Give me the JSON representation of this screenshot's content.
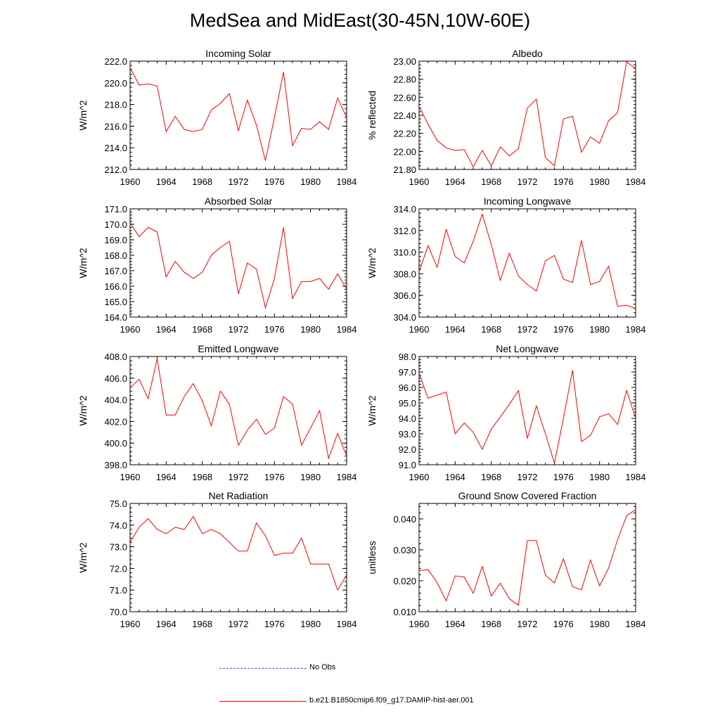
{
  "title": "MedSea and MidEast(30-45N,10W-60E)",
  "colors": {
    "model": "#ff0000",
    "obs": "#4a4ad8",
    "axis": "#000000"
  },
  "legend": {
    "obs_label": "No Obs",
    "model_label": "b.e21.B1850cmip6.f09_g17.DAMIP-hist-aer.001"
  },
  "chart_data": [
    {
      "type": "line",
      "title": "Incoming Solar",
      "ylabel": "W/m^2",
      "xlim": [
        1960,
        1984
      ],
      "ylim": [
        212,
        222
      ],
      "x_ticks": [
        "1960",
        "1964",
        "1968",
        "1972",
        "1976",
        "1980",
        "1984"
      ],
      "y_ticks": [
        "212.0",
        "214.0",
        "216.0",
        "218.0",
        "220.0",
        "222.0"
      ],
      "x": [
        1960,
        1961,
        1962,
        1963,
        1964,
        1965,
        1966,
        1967,
        1968,
        1969,
        1970,
        1971,
        1972,
        1973,
        1974,
        1975,
        1976,
        1977,
        1978,
        1979,
        1980,
        1981,
        1982,
        1983,
        1984
      ],
      "series": [
        {
          "name": "b.e21.B1850cmip6.f09_g17.DAMIP-hist-aer.001",
          "values": [
            221.4,
            219.8,
            219.9,
            219.7,
            215.5,
            216.9,
            215.7,
            215.5,
            215.7,
            217.5,
            218.1,
            219.0,
            215.6,
            218.4,
            216.1,
            212.8,
            216.8,
            221.0,
            214.2,
            215.8,
            215.7,
            216.4,
            215.7,
            218.6,
            216.8
          ]
        }
      ]
    },
    {
      "type": "line",
      "title": "Albedo",
      "ylabel": "% reflected",
      "xlim": [
        1960,
        1984
      ],
      "ylim": [
        21.8,
        23.0
      ],
      "x_ticks": [
        "1960",
        "1964",
        "1968",
        "1972",
        "1976",
        "1980",
        "1984"
      ],
      "y_ticks": [
        "21.80",
        "22.00",
        "22.20",
        "22.40",
        "22.60",
        "22.80",
        "23.00"
      ],
      "x": [
        1960,
        1961,
        1962,
        1963,
        1964,
        1965,
        1966,
        1967,
        1968,
        1969,
        1970,
        1971,
        1972,
        1973,
        1974,
        1975,
        1976,
        1977,
        1978,
        1979,
        1980,
        1981,
        1982,
        1983,
        1984
      ],
      "series": [
        {
          "name": "b.e21.B1850cmip6.f09_g17.DAMIP-hist-aer.001",
          "values": [
            22.5,
            22.3,
            22.12,
            22.04,
            22.01,
            22.02,
            21.83,
            22.01,
            21.84,
            22.05,
            21.95,
            22.03,
            22.48,
            22.58,
            21.93,
            21.84,
            22.36,
            22.39,
            21.99,
            22.16,
            22.09,
            22.34,
            22.43,
            22.99,
            22.92
          ]
        }
      ]
    },
    {
      "type": "line",
      "title": "Absorbed Solar",
      "ylabel": "W/m^2",
      "xlim": [
        1960,
        1984
      ],
      "ylim": [
        164,
        171
      ],
      "x_ticks": [
        "1960",
        "1964",
        "1968",
        "1972",
        "1976",
        "1980",
        "1984"
      ],
      "y_ticks": [
        "164.0",
        "165.0",
        "166.0",
        "167.0",
        "168.0",
        "169.0",
        "170.0",
        "171.0"
      ],
      "x": [
        1960,
        1961,
        1962,
        1963,
        1964,
        1965,
        1966,
        1967,
        1968,
        1969,
        1970,
        1971,
        1972,
        1973,
        1974,
        1975,
        1976,
        1977,
        1978,
        1979,
        1980,
        1981,
        1982,
        1983,
        1984
      ],
      "series": [
        {
          "name": "b.e21.B1850cmip6.f09_g17.DAMIP-hist-aer.001",
          "values": [
            170.1,
            169.2,
            169.8,
            169.5,
            166.6,
            167.6,
            166.9,
            166.5,
            166.9,
            168.0,
            168.5,
            168.9,
            165.5,
            167.5,
            167.1,
            164.6,
            166.5,
            169.8,
            165.2,
            166.3,
            166.3,
            166.5,
            165.8,
            166.8,
            165.8
          ]
        }
      ]
    },
    {
      "type": "line",
      "title": "Incoming Longwave",
      "ylabel": "W/m^2",
      "xlim": [
        1960,
        1984
      ],
      "ylim": [
        304,
        314
      ],
      "x_ticks": [
        "1960",
        "1964",
        "1968",
        "1972",
        "1976",
        "1980",
        "1984"
      ],
      "y_ticks": [
        "304.0",
        "306.0",
        "308.0",
        "310.0",
        "312.0",
        "314.0"
      ],
      "x": [
        1960,
        1961,
        1962,
        1963,
        1964,
        1965,
        1966,
        1967,
        1968,
        1969,
        1970,
        1971,
        1972,
        1973,
        1974,
        1975,
        1976,
        1977,
        1978,
        1979,
        1980,
        1981,
        1982,
        1983,
        1984
      ],
      "series": [
        {
          "name": "b.e21.B1850cmip6.f09_g17.DAMIP-hist-aer.001",
          "values": [
            308.2,
            310.6,
            308.6,
            312.1,
            309.6,
            309.0,
            311.0,
            313.5,
            310.7,
            307.4,
            309.9,
            307.8,
            307.0,
            306.4,
            309.2,
            309.7,
            307.5,
            307.2,
            311.1,
            307.0,
            307.3,
            308.7,
            305.0,
            305.1,
            304.8
          ]
        }
      ]
    },
    {
      "type": "line",
      "title": "Emitted Longwave",
      "ylabel": "W/m^2",
      "xlim": [
        1960,
        1984
      ],
      "ylim": [
        398,
        408
      ],
      "x_ticks": [
        "1960",
        "1964",
        "1968",
        "1972",
        "1976",
        "1980",
        "1984"
      ],
      "y_ticks": [
        "398.0",
        "400.0",
        "402.0",
        "404.0",
        "406.0",
        "408.0"
      ],
      "x": [
        1960,
        1961,
        1962,
        1963,
        1964,
        1965,
        1966,
        1967,
        1968,
        1969,
        1970,
        1971,
        1972,
        1973,
        1974,
        1975,
        1976,
        1977,
        1978,
        1979,
        1980,
        1981,
        1982,
        1983,
        1984
      ],
      "series": [
        {
          "name": "b.e21.B1850cmip6.f09_g17.DAMIP-hist-aer.001",
          "values": [
            405.1,
            405.9,
            404.1,
            407.8,
            402.6,
            402.6,
            404.3,
            405.5,
            403.9,
            401.6,
            404.8,
            403.6,
            399.8,
            401.2,
            402.2,
            400.8,
            401.4,
            404.3,
            403.6,
            399.8,
            401.4,
            403.0,
            398.6,
            400.9,
            398.8
          ]
        }
      ]
    },
    {
      "type": "line",
      "title": "Net Longwave",
      "ylabel": "W/m^2",
      "xlim": [
        1960,
        1984
      ],
      "ylim": [
        91,
        98
      ],
      "x_ticks": [
        "1960",
        "1964",
        "1968",
        "1972",
        "1976",
        "1980",
        "1984"
      ],
      "y_ticks": [
        "91.0",
        "92.0",
        "93.0",
        "94.0",
        "95.0",
        "96.0",
        "97.0",
        "98.0"
      ],
      "x": [
        1960,
        1961,
        1962,
        1963,
        1964,
        1965,
        1966,
        1967,
        1968,
        1969,
        1970,
        1971,
        1972,
        1973,
        1974,
        1975,
        1976,
        1977,
        1978,
        1979,
        1980,
        1981,
        1982,
        1983,
        1984
      ],
      "series": [
        {
          "name": "b.e21.B1850cmip6.f09_g17.DAMIP-hist-aer.001",
          "values": [
            96.9,
            95.3,
            95.5,
            95.7,
            93.0,
            93.7,
            93.1,
            92.0,
            93.3,
            94.1,
            94.9,
            95.8,
            92.7,
            94.8,
            93.0,
            91.1,
            94.0,
            97.1,
            92.5,
            92.9,
            94.1,
            94.3,
            93.6,
            95.8,
            94.0
          ]
        }
      ]
    },
    {
      "type": "line",
      "title": "Net Radiation",
      "ylabel": "W/m^2",
      "xlim": [
        1960,
        1984
      ],
      "ylim": [
        70,
        75
      ],
      "x_ticks": [
        "1960",
        "1964",
        "1968",
        "1972",
        "1976",
        "1980",
        "1984"
      ],
      "y_ticks": [
        "70.0",
        "71.0",
        "72.0",
        "73.0",
        "74.0",
        "75.0"
      ],
      "x": [
        1960,
        1961,
        1962,
        1963,
        1964,
        1965,
        1966,
        1967,
        1968,
        1969,
        1970,
        1971,
        1972,
        1973,
        1974,
        1975,
        1976,
        1977,
        1978,
        1979,
        1980,
        1981,
        1982,
        1983,
        1984
      ],
      "series": [
        {
          "name": "b.e21.B1850cmip6.f09_g17.DAMIP-hist-aer.001",
          "values": [
            73.2,
            73.9,
            74.3,
            73.8,
            73.6,
            73.9,
            73.8,
            74.4,
            73.6,
            73.8,
            73.6,
            73.2,
            72.8,
            72.8,
            74.1,
            73.5,
            72.6,
            72.7,
            72.7,
            73.4,
            72.2,
            72.2,
            72.2,
            71.0,
            71.7
          ]
        }
      ]
    },
    {
      "type": "line",
      "title": "Ground Snow Covered Fraction",
      "ylabel": "unitless",
      "xlim": [
        1960,
        1984
      ],
      "ylim": [
        0.01,
        0.045
      ],
      "x_ticks": [
        "1960",
        "1964",
        "1968",
        "1972",
        "1976",
        "1980",
        "1984"
      ],
      "y_ticks": [
        "0.010",
        "0.020",
        "0.030",
        "0.040"
      ],
      "y_tick_values": [
        0.01,
        0.02,
        0.03,
        0.04
      ],
      "x": [
        1960,
        1961,
        1962,
        1963,
        1964,
        1965,
        1966,
        1967,
        1968,
        1969,
        1970,
        1971,
        1972,
        1973,
        1974,
        1975,
        1976,
        1977,
        1978,
        1979,
        1980,
        1981,
        1982,
        1983,
        1984
      ],
      "series": [
        {
          "name": "b.e21.B1850cmip6.f09_g17.DAMIP-hist-aer.001",
          "values": [
            0.0233,
            0.0236,
            0.0194,
            0.0135,
            0.0216,
            0.0212,
            0.016,
            0.0246,
            0.0151,
            0.0192,
            0.0142,
            0.0121,
            0.033,
            0.033,
            0.0218,
            0.0193,
            0.0271,
            0.0181,
            0.0171,
            0.0267,
            0.0183,
            0.0241,
            0.0333,
            0.041,
            0.043
          ]
        }
      ]
    }
  ]
}
